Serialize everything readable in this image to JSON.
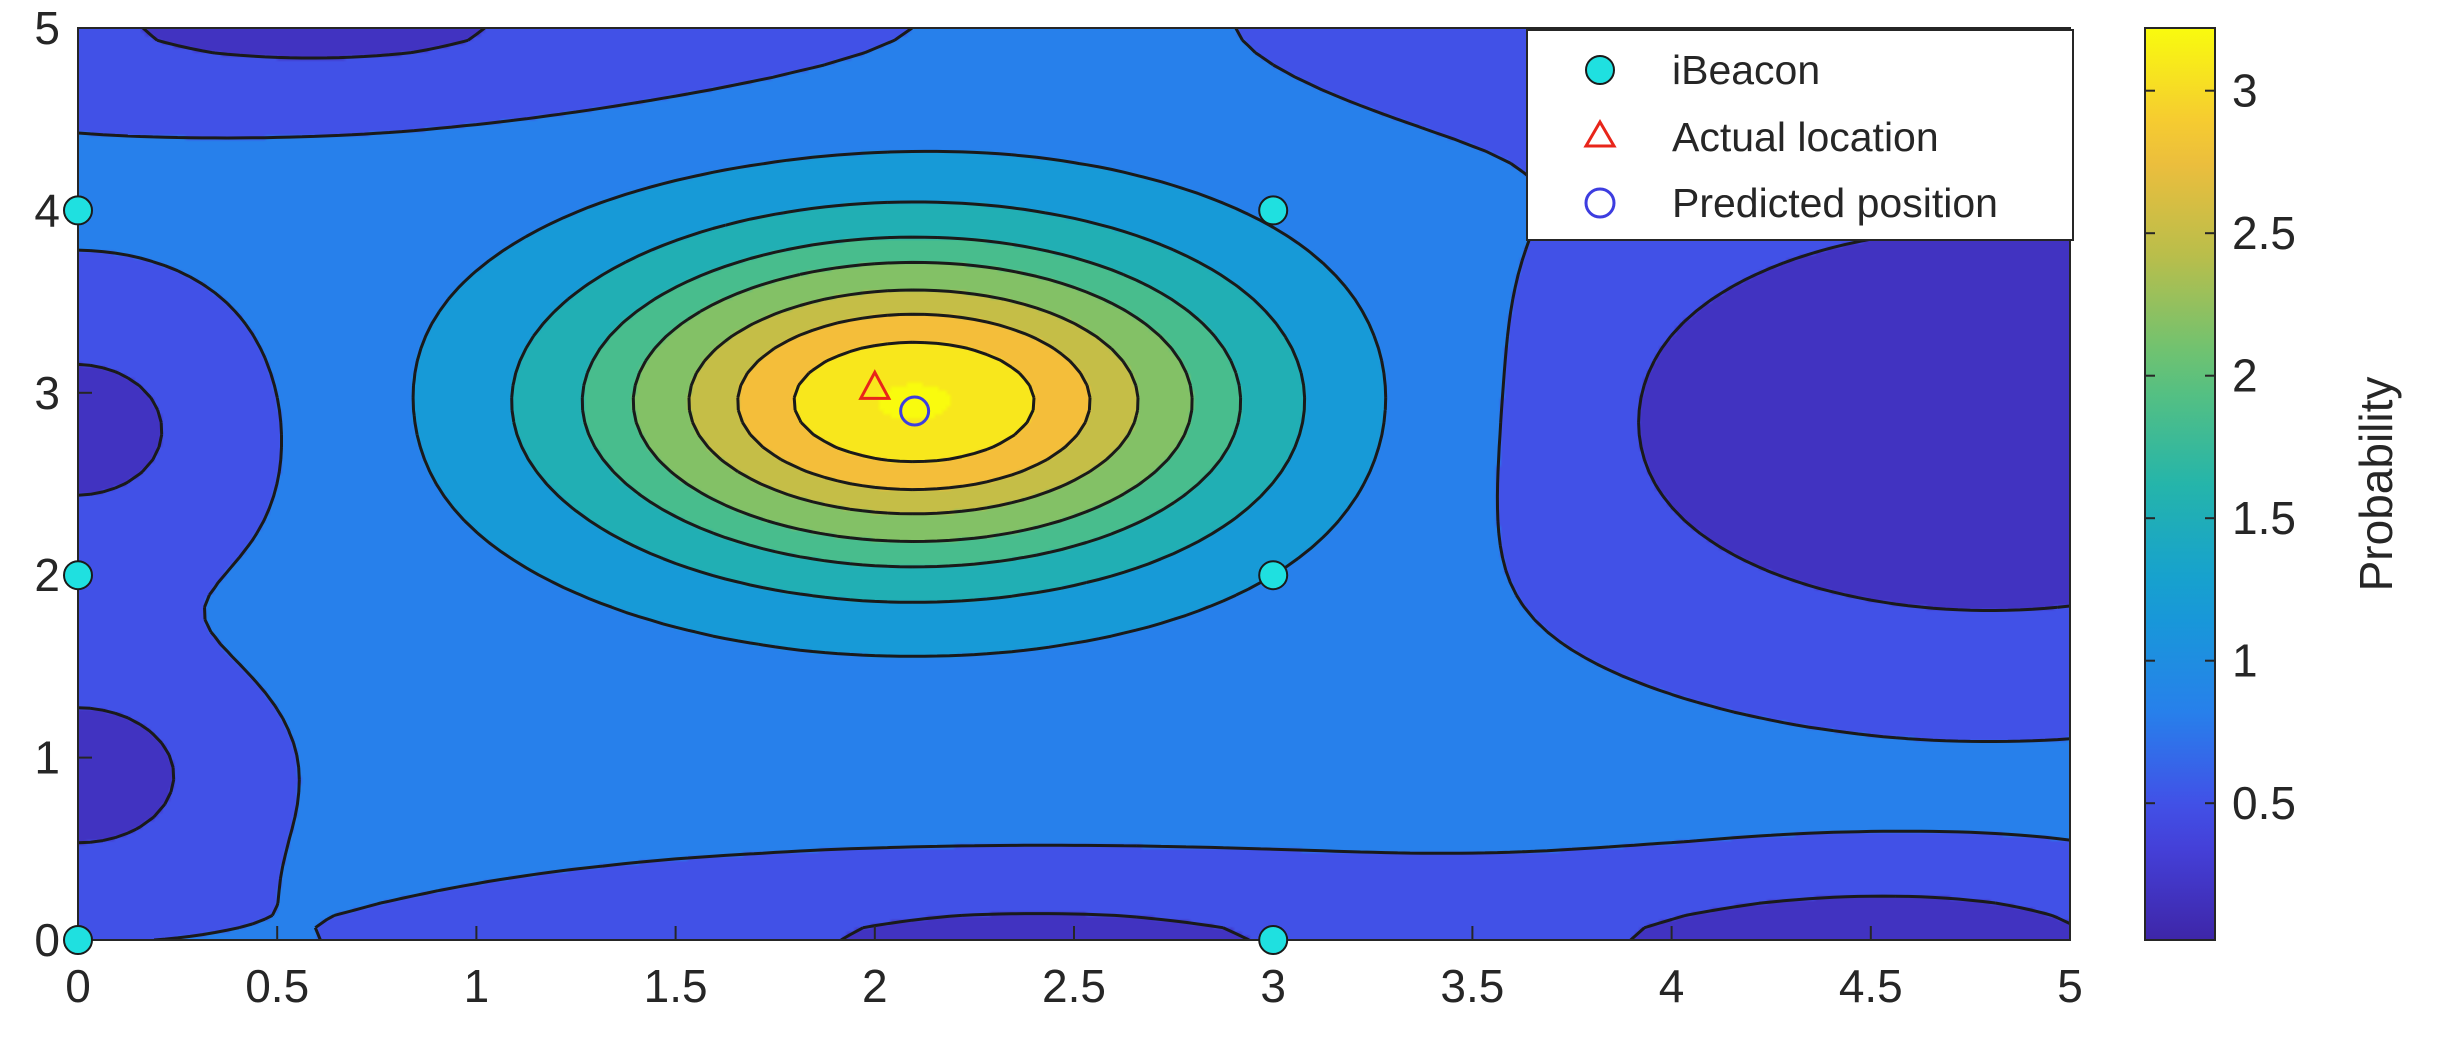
{
  "chart_data": {
    "type": "contour",
    "title": "",
    "xlabel": "",
    "ylabel": "",
    "xlim": [
      0,
      5
    ],
    "ylim": [
      0,
      5
    ],
    "xticks": [
      0,
      0.5,
      1,
      1.5,
      2,
      2.5,
      3,
      3.5,
      4,
      4.5,
      5
    ],
    "xtick_labels": [
      "0",
      "0.5",
      "1",
      "1.5",
      "2",
      "2.5",
      "3",
      "3.5",
      "4",
      "4.5",
      "5"
    ],
    "yticks": [
      0,
      1,
      2,
      3,
      4,
      5
    ],
    "ytick_labels": [
      "0",
      "1",
      "2",
      "3",
      "4",
      "5"
    ],
    "grid": false,
    "colormap": "parula",
    "contour_levels": [
      0.35,
      0.65,
      1.0,
      1.35,
      1.7,
      2.0,
      2.35,
      2.65,
      2.95
    ],
    "line_style": "dashed",
    "probability_field": {
      "base": 0.75,
      "peak": {
        "x": 2.1,
        "y": 2.95,
        "amplitude": 2.5,
        "sigma_x": 0.6,
        "sigma_y": 0.65
      },
      "low_regions": [
        {
          "x": 4.8,
          "y": 2.85,
          "amplitude": -0.85,
          "sigma_x": 0.75,
          "sigma_y": 0.85
        },
        {
          "x": 0.0,
          "y": 2.8,
          "amplitude": -0.5,
          "sigma_x": 0.35,
          "sigma_y": 0.55
        },
        {
          "x": 0.0,
          "y": 0.9,
          "amplitude": -0.55,
          "sigma_x": 0.3,
          "sigma_y": 0.45
        },
        {
          "x": 0.6,
          "y": 5.0,
          "amplitude": -0.45,
          "sigma_x": 0.9,
          "sigma_y": 0.35
        },
        {
          "x": 2.4,
          "y": 0.0,
          "amplitude": -0.45,
          "sigma_x": 1.0,
          "sigma_y": 0.3
        },
        {
          "x": 4.6,
          "y": 0.0,
          "amplitude": -0.5,
          "sigma_x": 0.6,
          "sigma_y": 0.3
        },
        {
          "x": 3.9,
          "y": 5.0,
          "amplitude": -0.35,
          "sigma_x": 0.6,
          "sigma_y": 0.4
        }
      ]
    },
    "series": [
      {
        "name": "iBeacon",
        "marker": "circle",
        "color": "#1fe0e0",
        "points": [
          [
            0,
            0
          ],
          [
            0,
            2
          ],
          [
            0,
            4
          ],
          [
            3,
            0
          ],
          [
            3,
            2
          ],
          [
            3,
            4
          ]
        ]
      },
      {
        "name": "Actual location",
        "marker": "triangle",
        "color": "#e8251a",
        "points": [
          [
            2.0,
            3.03
          ]
        ]
      },
      {
        "name": "Predicted position",
        "marker": "circle-open",
        "color": "#3d3de0",
        "points": [
          [
            2.1,
            2.9
          ]
        ]
      }
    ],
    "legend_position": "top-right",
    "colorbar": {
      "label": "Probability",
      "ticks": [
        0.5,
        1,
        1.5,
        2,
        2.5,
        3
      ],
      "tick_labels": [
        "0.5",
        "1",
        "1.5",
        "2",
        "2.5",
        "3"
      ],
      "range": [
        0.02,
        3.22
      ]
    }
  }
}
